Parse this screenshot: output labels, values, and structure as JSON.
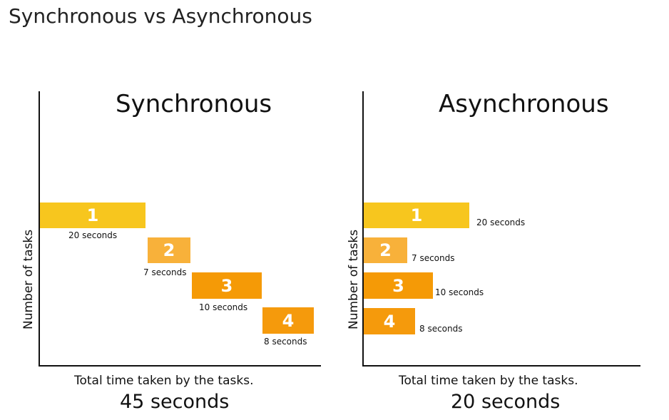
{
  "title": "Synchronous vs Asynchronous",
  "colors": {
    "task1": "#f7c61e",
    "task2": "#f8b13a",
    "task3": "#f59a06",
    "task4": "#f59a0c"
  },
  "synchronous": {
    "heading": "Synchronous",
    "y_label": "Number of tasks",
    "caption": "Total time taken by the tasks.",
    "total": "45 seconds",
    "tasks": [
      {
        "label": "1",
        "seconds": 20,
        "text": "20 seconds"
      },
      {
        "label": "2",
        "seconds": 7,
        "text": "7 seconds"
      },
      {
        "label": "3",
        "seconds": 10,
        "text": "10 seconds"
      },
      {
        "label": "4",
        "seconds": 8,
        "text": "8 seconds"
      }
    ]
  },
  "asynchronous": {
    "heading": "Asynchronous",
    "y_label": "Number of tasks",
    "caption": "Total time taken by the tasks.",
    "total": "20 seconds",
    "tasks": [
      {
        "label": "1",
        "seconds": 20,
        "text": "20 seconds"
      },
      {
        "label": "2",
        "seconds": 7,
        "text": "7 seconds"
      },
      {
        "label": "3",
        "seconds": 10,
        "text": "10 seconds"
      },
      {
        "label": "4",
        "seconds": 8,
        "text": "8 seconds"
      }
    ]
  }
}
